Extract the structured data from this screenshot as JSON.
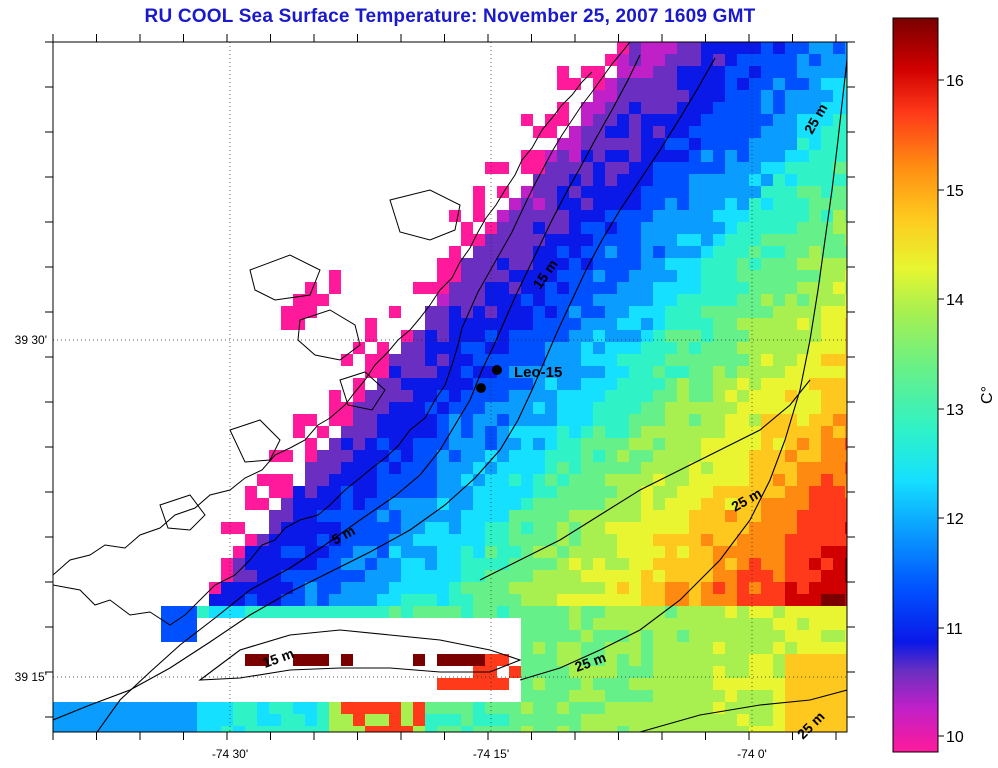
{
  "title": "RU COOL  Sea Surface Temperature:  November 25, 2007 1609 GMT",
  "axes": {
    "lat_ticks": [
      "39 30'",
      "39 15'"
    ],
    "lon_ticks": [
      "-74 30'",
      "-74 15'",
      "-74 0'"
    ]
  },
  "station": {
    "label": "Leo-15"
  },
  "contours": [
    "5 m",
    "15 m",
    "15 m",
    "25 m",
    "25 m",
    "25 m",
    "25 m"
  ],
  "colorbar": {
    "unit": "C°",
    "ticks": [
      "16",
      "15",
      "14",
      "13",
      "12",
      "11",
      "10"
    ],
    "min": 9.8,
    "max": 16.5,
    "colors": [
      "#ff1a9c",
      "#c020c8",
      "#6a2fc0",
      "#0a18e8",
      "#0050ff",
      "#0a9cff",
      "#15e0ff",
      "#2ff2c6",
      "#66f08a",
      "#a8f050",
      "#e8f530",
      "#ffc81e",
      "#ff8a12",
      "#ff3a1a",
      "#d10000",
      "#7a0000"
    ]
  },
  "chart_data": {
    "type": "heatmap",
    "title": "RU COOL  Sea Surface Temperature:  November 25, 2007 1609 GMT",
    "xlabel": "",
    "ylabel": "",
    "colorbar_label": "C°",
    "x_ticks": [
      "-74 30'",
      "-74 15'",
      "-74 0'"
    ],
    "y_ticks": [
      "39 30'",
      "39 15'"
    ],
    "value_range": [
      9.8,
      16.5
    ],
    "description_values": {
      "nearshore_min": 10.0,
      "mid_shelf": 11.0,
      "offshore_mid": 12.5,
      "offshore_far": 13.5,
      "southern_warm_patch_max": 16.3
    },
    "annotations": [
      "Leo-15",
      "5 m",
      "15 m",
      "25 m"
    ]
  }
}
